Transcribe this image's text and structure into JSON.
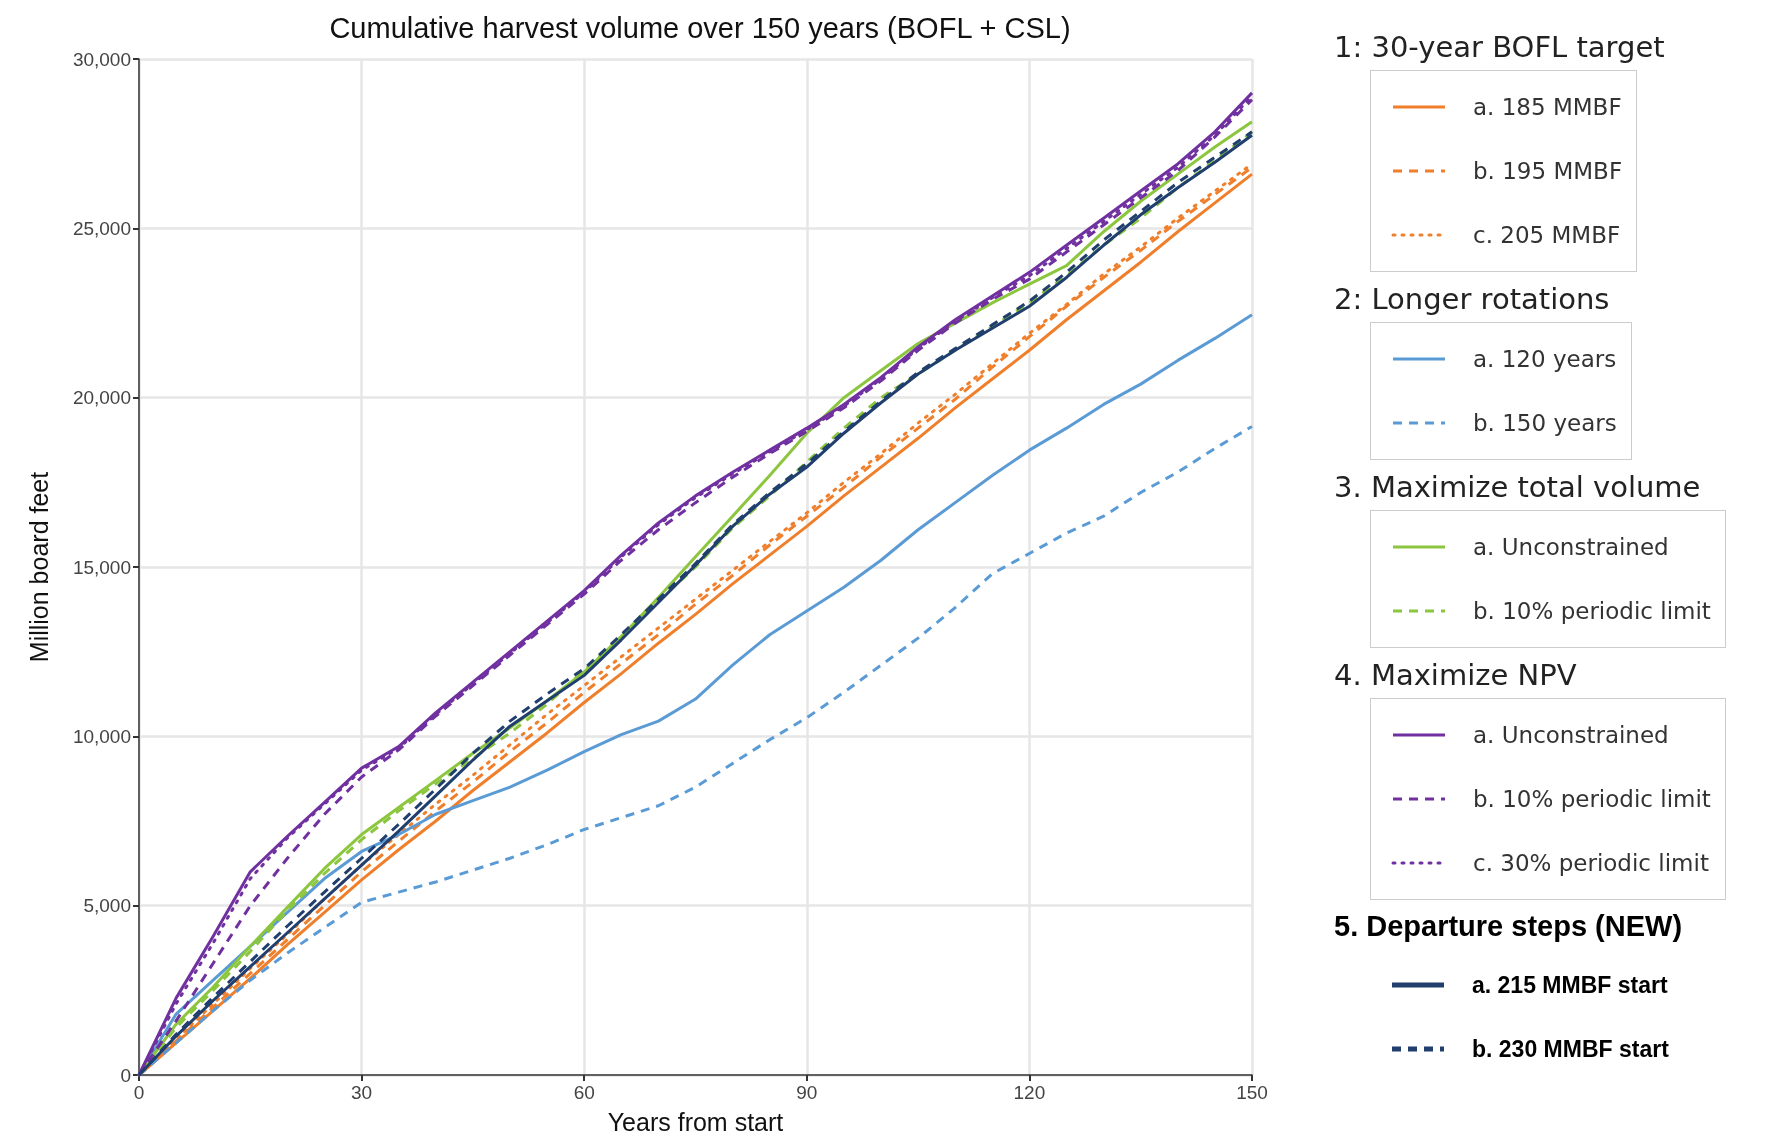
{
  "chart_data": {
    "type": "line",
    "title": "Cumulative harvest volume over 150 years (BOFL + CSL)",
    "xlabel": "Years from start",
    "ylabel": "Million board feet",
    "x": [
      0,
      5,
      10,
      15,
      20,
      25,
      30,
      35,
      40,
      45,
      50,
      55,
      60,
      65,
      70,
      75,
      80,
      85,
      90,
      95,
      100,
      105,
      110,
      115,
      120,
      125,
      130,
      135,
      140,
      145,
      150
    ],
    "xlim": [
      0,
      150
    ],
    "xticks": [
      0,
      30,
      60,
      90,
      120,
      150
    ],
    "ylim": [
      0,
      30000
    ],
    "yticks": [
      0,
      {
        "value": 5000,
        "label": "5,000"
      },
      {
        "value": 10000,
        "label": "10,000"
      },
      {
        "value": 15000,
        "label": "15,000"
      },
      {
        "value": 20000,
        "label": "20,000"
      },
      {
        "value": 25000,
        "label": "25,000"
      },
      {
        "value": 30000,
        "label": "30,000"
      }
    ],
    "grid": true,
    "legend": "right",
    "marker": "none",
    "annotations": [
      "1: 30-year BOFL target",
      "2: Longer rotations",
      "3. Maximize total volume",
      "4. Maximize NPV",
      "5. Departure steps (NEW)"
    ],
    "series": [
      {
        "name": "a. 185 MMBF",
        "color": "#f07f2c",
        "line_style": "solid",
        "values": [
          0,
          950,
          1900,
          2850,
          3850,
          4800,
          5760,
          6650,
          7500,
          8400,
          9250,
          10100,
          11000,
          11850,
          12750,
          13600,
          14500,
          15350,
          16200,
          17100,
          17950,
          18800,
          19700,
          20550,
          21400,
          22300,
          23150,
          24000,
          24900,
          25750,
          26600
        ]
      },
      {
        "name": "b. 195 MMBF",
        "color": "#f07f2c",
        "line_style": "dashed",
        "values": [
          0,
          1000,
          2000,
          3000,
          4000,
          5000,
          6000,
          6900,
          7800,
          8650,
          9550,
          10400,
          11300,
          12150,
          13000,
          13900,
          14750,
          15650,
          16500,
          17350,
          18250,
          19100,
          19950,
          20900,
          21800,
          22700,
          23550,
          24350,
          25200,
          26000,
          26800
        ]
      },
      {
        "name": "c. 205 MMBF",
        "color": "#f07f2c",
        "line_style": "dotted",
        "values": [
          0,
          1050,
          2100,
          3150,
          4150,
          5200,
          6200,
          7100,
          8000,
          8850,
          9750,
          10650,
          11500,
          12350,
          13200,
          14050,
          14900,
          15750,
          16600,
          17500,
          18350,
          19250,
          20100,
          21000,
          21900,
          22750,
          23650,
          24450,
          25300,
          26100,
          26900
        ]
      },
      {
        "name": "a. 120 years",
        "color": "#5b9bd5",
        "line_style": "solid",
        "values": [
          0,
          1800,
          2800,
          3800,
          4800,
          5800,
          6600,
          7100,
          7700,
          8100,
          8500,
          9000,
          9550,
          10050,
          10450,
          11100,
          12100,
          13000,
          13700,
          14400,
          15200,
          16100,
          16900,
          17700,
          18450,
          19100,
          19800,
          20400,
          21100,
          21750,
          22450
        ]
      },
      {
        "name": "b. 150 years",
        "color": "#5b9bd5",
        "line_style": "dashed",
        "values": [
          0,
          950,
          1900,
          2800,
          3600,
          4350,
          5100,
          5400,
          5700,
          6050,
          6400,
          6800,
          7250,
          7600,
          7950,
          8500,
          9200,
          9900,
          10550,
          11300,
          12100,
          12900,
          13800,
          14800,
          15400,
          16000,
          16500,
          17200,
          17800,
          18500,
          19150
        ]
      },
      {
        "name": "a. Unconstrained",
        "color": "#8cc63f",
        "line_style": "solid",
        "values": [
          0,
          1500,
          2600,
          3800,
          4950,
          6100,
          7100,
          7900,
          8700,
          9500,
          10250,
          11050,
          11900,
          12950,
          14100,
          15300,
          16500,
          17700,
          18950,
          20000,
          20800,
          21600,
          22200,
          22800,
          23350,
          23900,
          24900,
          25800,
          26600,
          27400,
          28150
        ]
      },
      {
        "name": "b. 10% periodic limit",
        "color": "#8cc63f",
        "line_style": "dashed",
        "values": [
          0,
          1400,
          2500,
          3650,
          4850,
          5950,
          6950,
          7800,
          8600,
          9350,
          10100,
          10950,
          11950,
          12950,
          14000,
          15000,
          16150,
          17100,
          18100,
          19100,
          20000,
          20700,
          21400,
          22100,
          22800,
          23600,
          24500,
          25300,
          26200,
          27000,
          27850
        ]
      },
      {
        "name": "a. Unconstrained",
        "color": "#7030a0",
        "line_style": "solid",
        "values": [
          0,
          2270,
          4100,
          6000,
          7050,
          8050,
          9060,
          9700,
          10700,
          11600,
          12500,
          13400,
          14300,
          15350,
          16300,
          17100,
          17800,
          18450,
          19100,
          19800,
          20600,
          21500,
          22300,
          23000,
          23700,
          24500,
          25300,
          26100,
          26900,
          27850,
          29000
        ]
      },
      {
        "name": "b. 10% periodic limit",
        "color": "#7030a0",
        "line_style": "dashed",
        "values": [
          0,
          1600,
          3300,
          5000,
          6400,
          7700,
          8800,
          9600,
          10600,
          11500,
          12400,
          13300,
          14200,
          15200,
          16100,
          16900,
          17650,
          18350,
          19000,
          19700,
          20500,
          21400,
          22200,
          22900,
          23500,
          24300,
          25100,
          25900,
          26700,
          27700,
          28800
        ]
      },
      {
        "name": "c. 30% periodic limit",
        "color": "#7030a0",
        "line_style": "dotted",
        "values": [
          0,
          2100,
          3900,
          5800,
          7000,
          8000,
          9000,
          9650,
          10650,
          11550,
          12450,
          13350,
          14250,
          15300,
          16250,
          17050,
          17750,
          18400,
          19050,
          19750,
          20550,
          21450,
          22250,
          22950,
          23600,
          24400,
          25200,
          26000,
          26800,
          27750,
          28900
        ]
      },
      {
        "name": "a. 215 MMBF start",
        "color": "#203f6e",
        "line_style": "solid",
        "values": [
          0,
          1150,
          2200,
          3200,
          4200,
          5200,
          6200,
          7200,
          8250,
          9300,
          10300,
          11050,
          11800,
          12850,
          13950,
          15050,
          16200,
          17150,
          17950,
          18950,
          19850,
          20700,
          21400,
          22050,
          22700,
          23550,
          24500,
          25400,
          26200,
          26950,
          27750
        ]
      },
      {
        "name": "b. 230 MMBF start",
        "color": "#203f6e",
        "line_style": "dashed",
        "values": [
          0,
          1200,
          2300,
          3350,
          4400,
          5400,
          6400,
          7400,
          8450,
          9500,
          10450,
          11250,
          12000,
          13000,
          14050,
          15100,
          16250,
          17200,
          18050,
          19000,
          19900,
          20750,
          21450,
          22150,
          22850,
          23700,
          24650,
          25500,
          26350,
          27100,
          27850
        ]
      }
    ]
  }
}
